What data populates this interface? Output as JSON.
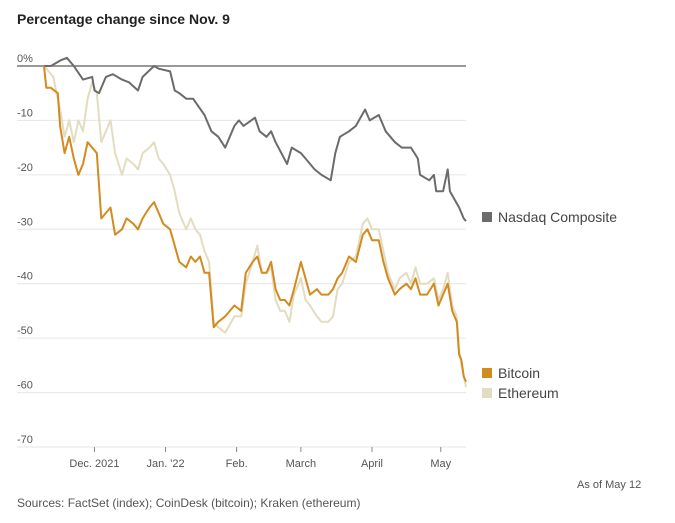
{
  "title": "Percentage change since Nov. 9",
  "as_of": "As of May 12",
  "source": "Sources: FactSet (index); CoinDesk (bitcoin); Kraken (ethereum)",
  "colors": {
    "nasdaq": "#6b6b6b",
    "bitcoin": "#d38a1e",
    "ethereum": "#e2dcc0",
    "grid": "#e6e6e6",
    "zero": "#777777",
    "axis": "#888888"
  },
  "chart_data": {
    "type": "line",
    "title": "Percentage change since Nov. 9",
    "ylim": [
      -70,
      0
    ],
    "yticks": [
      0,
      -10,
      -20,
      -30,
      -40,
      -50,
      -60,
      -70
    ],
    "ytick_labels": [
      "0%",
      "-10",
      "-20",
      "-30",
      "-40",
      "-50",
      "-60",
      "-70"
    ],
    "xlim": [
      "2021-11-09",
      "2022-05-12"
    ],
    "x_ticks": [
      {
        "date": "2021-12-01",
        "label": "Dec. 2021"
      },
      {
        "date": "2022-01-01",
        "label": "Jan. '22"
      },
      {
        "date": "2022-02-01",
        "label": "Feb."
      },
      {
        "date": "2022-03-01",
        "label": "March"
      },
      {
        "date": "2022-04-01",
        "label": "April"
      },
      {
        "date": "2022-05-01",
        "label": "May"
      }
    ],
    "grid": true,
    "legend": "right",
    "series": [
      {
        "name": "Nasdaq Composite",
        "points": [
          [
            "2021-11-09",
            0
          ],
          [
            "2021-11-12",
            0
          ],
          [
            "2021-11-16",
            1
          ],
          [
            "2021-11-19",
            1.5
          ],
          [
            "2021-11-22",
            0
          ],
          [
            "2021-11-26",
            -2.5
          ],
          [
            "2021-11-30",
            -2
          ],
          [
            "2021-12-01",
            -4.5
          ],
          [
            "2021-12-03",
            -5
          ],
          [
            "2021-12-06",
            -2
          ],
          [
            "2021-12-09",
            -1.5
          ],
          [
            "2021-12-13",
            -2.5
          ],
          [
            "2021-12-16",
            -3
          ],
          [
            "2021-12-20",
            -4.5
          ],
          [
            "2021-12-22",
            -2
          ],
          [
            "2021-12-27",
            0
          ],
          [
            "2021-12-29",
            -0.5
          ],
          [
            "2022-01-03",
            -1
          ],
          [
            "2022-01-05",
            -4.5
          ],
          [
            "2022-01-07",
            -5
          ],
          [
            "2022-01-10",
            -6
          ],
          [
            "2022-01-13",
            -6
          ],
          [
            "2022-01-18",
            -9
          ],
          [
            "2022-01-21",
            -12
          ],
          [
            "2022-01-24",
            -13
          ],
          [
            "2022-01-27",
            -15
          ],
          [
            "2022-01-31",
            -11
          ],
          [
            "2022-02-02",
            -10
          ],
          [
            "2022-02-04",
            -11
          ],
          [
            "2022-02-09",
            -9.5
          ],
          [
            "2022-02-11",
            -12
          ],
          [
            "2022-02-14",
            -13
          ],
          [
            "2022-02-16",
            -12
          ],
          [
            "2022-02-18",
            -14
          ],
          [
            "2022-02-23",
            -18
          ],
          [
            "2022-02-25",
            -15
          ],
          [
            "2022-03-01",
            -16
          ],
          [
            "2022-03-03",
            -17
          ],
          [
            "2022-03-07",
            -19
          ],
          [
            "2022-03-10",
            -20
          ],
          [
            "2022-03-14",
            -21
          ],
          [
            "2022-03-16",
            -16
          ],
          [
            "2022-03-18",
            -13
          ],
          [
            "2022-03-22",
            -12
          ],
          [
            "2022-03-25",
            -11
          ],
          [
            "2022-03-29",
            -8
          ],
          [
            "2022-03-31",
            -10
          ],
          [
            "2022-04-04",
            -9
          ],
          [
            "2022-04-07",
            -12
          ],
          [
            "2022-04-11",
            -14
          ],
          [
            "2022-04-14",
            -15
          ],
          [
            "2022-04-18",
            -15
          ],
          [
            "2022-04-21",
            -17
          ],
          [
            "2022-04-22",
            -20
          ],
          [
            "2022-04-26",
            -21
          ],
          [
            "2022-04-28",
            -20
          ],
          [
            "2022-04-29",
            -23
          ],
          [
            "2022-05-02",
            -23
          ],
          [
            "2022-05-04",
            -19
          ],
          [
            "2022-05-05",
            -23
          ],
          [
            "2022-05-09",
            -26
          ],
          [
            "2022-05-11",
            -28
          ],
          [
            "2022-05-12",
            -28.5
          ]
        ]
      },
      {
        "name": "Bitcoin",
        "points": [
          [
            "2021-11-09",
            0
          ],
          [
            "2021-11-10",
            -4
          ],
          [
            "2021-11-12",
            -4
          ],
          [
            "2021-11-15",
            -5
          ],
          [
            "2021-11-16",
            -11
          ],
          [
            "2021-11-18",
            -16
          ],
          [
            "2021-11-20",
            -13
          ],
          [
            "2021-11-22",
            -17
          ],
          [
            "2021-11-24",
            -20
          ],
          [
            "2021-11-26",
            -18
          ],
          [
            "2021-11-28",
            -14
          ],
          [
            "2021-11-30",
            -15
          ],
          [
            "2021-12-02",
            -16
          ],
          [
            "2021-12-04",
            -28
          ],
          [
            "2021-12-06",
            -27
          ],
          [
            "2021-12-08",
            -26
          ],
          [
            "2021-12-10",
            -31
          ],
          [
            "2021-12-13",
            -30
          ],
          [
            "2021-12-15",
            -28
          ],
          [
            "2021-12-18",
            -29
          ],
          [
            "2021-12-20",
            -30
          ],
          [
            "2021-12-22",
            -28
          ],
          [
            "2021-12-25",
            -26
          ],
          [
            "2021-12-27",
            -25
          ],
          [
            "2021-12-29",
            -27
          ],
          [
            "2021-12-31",
            -29
          ],
          [
            "2022-01-03",
            -30
          ],
          [
            "2022-01-05",
            -33
          ],
          [
            "2022-01-07",
            -36
          ],
          [
            "2022-01-10",
            -37
          ],
          [
            "2022-01-12",
            -35
          ],
          [
            "2022-01-14",
            -36
          ],
          [
            "2022-01-16",
            -35
          ],
          [
            "2022-01-18",
            -38
          ],
          [
            "2022-01-20",
            -38
          ],
          [
            "2022-01-22",
            -48
          ],
          [
            "2022-01-24",
            -47
          ],
          [
            "2022-01-27",
            -46
          ],
          [
            "2022-01-31",
            -44
          ],
          [
            "2022-02-03",
            -45
          ],
          [
            "2022-02-05",
            -38
          ],
          [
            "2022-02-08",
            -36
          ],
          [
            "2022-02-10",
            -35
          ],
          [
            "2022-02-12",
            -38
          ],
          [
            "2022-02-14",
            -38
          ],
          [
            "2022-02-16",
            -36
          ],
          [
            "2022-02-18",
            -41
          ],
          [
            "2022-02-20",
            -43
          ],
          [
            "2022-02-22",
            -43
          ],
          [
            "2022-02-24",
            -44
          ],
          [
            "2022-02-26",
            -41
          ],
          [
            "2022-03-01",
            -36
          ],
          [
            "2022-03-03",
            -39
          ],
          [
            "2022-03-05",
            -42
          ],
          [
            "2022-03-08",
            -41
          ],
          [
            "2022-03-10",
            -42
          ],
          [
            "2022-03-13",
            -42
          ],
          [
            "2022-03-15",
            -41
          ],
          [
            "2022-03-17",
            -39
          ],
          [
            "2022-03-19",
            -38
          ],
          [
            "2022-03-22",
            -35
          ],
          [
            "2022-03-25",
            -36
          ],
          [
            "2022-03-28",
            -31
          ],
          [
            "2022-03-30",
            -30
          ],
          [
            "2022-04-01",
            -32
          ],
          [
            "2022-04-04",
            -32
          ],
          [
            "2022-04-06",
            -36
          ],
          [
            "2022-04-08",
            -39
          ],
          [
            "2022-04-11",
            -42
          ],
          [
            "2022-04-13",
            -41
          ],
          [
            "2022-04-16",
            -40
          ],
          [
            "2022-04-18",
            -41
          ],
          [
            "2022-04-20",
            -39
          ],
          [
            "2022-04-22",
            -42
          ],
          [
            "2022-04-25",
            -42
          ],
          [
            "2022-04-28",
            -40
          ],
          [
            "2022-04-30",
            -44
          ],
          [
            "2022-05-02",
            -42
          ],
          [
            "2022-05-04",
            -40
          ],
          [
            "2022-05-06",
            -45
          ],
          [
            "2022-05-08",
            -47
          ],
          [
            "2022-05-09",
            -53
          ],
          [
            "2022-05-10",
            -54
          ],
          [
            "2022-05-11",
            -57
          ],
          [
            "2022-05-12",
            -58
          ]
        ]
      },
      {
        "name": "Ethereum",
        "points": [
          [
            "2021-11-09",
            0
          ],
          [
            "2021-11-11",
            -1
          ],
          [
            "2021-11-13",
            -2
          ],
          [
            "2021-11-16",
            -8
          ],
          [
            "2021-11-18",
            -13
          ],
          [
            "2021-11-20",
            -10
          ],
          [
            "2021-11-22",
            -14
          ],
          [
            "2021-11-24",
            -10
          ],
          [
            "2021-11-26",
            -12
          ],
          [
            "2021-11-28",
            -6
          ],
          [
            "2021-11-30",
            -3
          ],
          [
            "2021-12-02",
            -5
          ],
          [
            "2021-12-04",
            -14
          ],
          [
            "2021-12-06",
            -12
          ],
          [
            "2021-12-08",
            -10
          ],
          [
            "2021-12-10",
            -16
          ],
          [
            "2021-12-13",
            -20
          ],
          [
            "2021-12-15",
            -17
          ],
          [
            "2021-12-18",
            -18
          ],
          [
            "2021-12-20",
            -19
          ],
          [
            "2021-12-22",
            -16
          ],
          [
            "2021-12-25",
            -15
          ],
          [
            "2021-12-27",
            -14
          ],
          [
            "2021-12-29",
            -17
          ],
          [
            "2021-12-31",
            -18
          ],
          [
            "2022-01-03",
            -20
          ],
          [
            "2022-01-05",
            -23
          ],
          [
            "2022-01-07",
            -27
          ],
          [
            "2022-01-10",
            -30
          ],
          [
            "2022-01-12",
            -28
          ],
          [
            "2022-01-14",
            -30
          ],
          [
            "2022-01-16",
            -31
          ],
          [
            "2022-01-18",
            -34
          ],
          [
            "2022-01-20",
            -36
          ],
          [
            "2022-01-22",
            -47
          ],
          [
            "2022-01-24",
            -48
          ],
          [
            "2022-01-27",
            -49
          ],
          [
            "2022-01-31",
            -46
          ],
          [
            "2022-02-03",
            -46
          ],
          [
            "2022-02-05",
            -40
          ],
          [
            "2022-02-08",
            -36
          ],
          [
            "2022-02-10",
            -33
          ],
          [
            "2022-02-12",
            -38
          ],
          [
            "2022-02-14",
            -38
          ],
          [
            "2022-02-16",
            -37
          ],
          [
            "2022-02-18",
            -43
          ],
          [
            "2022-02-20",
            -45
          ],
          [
            "2022-02-22",
            -45
          ],
          [
            "2022-02-24",
            -47
          ],
          [
            "2022-02-26",
            -42
          ],
          [
            "2022-03-01",
            -39
          ],
          [
            "2022-03-03",
            -43
          ],
          [
            "2022-03-05",
            -44
          ],
          [
            "2022-03-08",
            -46
          ],
          [
            "2022-03-10",
            -47
          ],
          [
            "2022-03-13",
            -47
          ],
          [
            "2022-03-15",
            -46
          ],
          [
            "2022-03-17",
            -41
          ],
          [
            "2022-03-19",
            -40
          ],
          [
            "2022-03-22",
            -36
          ],
          [
            "2022-03-25",
            -35
          ],
          [
            "2022-03-28",
            -29
          ],
          [
            "2022-03-30",
            -28
          ],
          [
            "2022-04-01",
            -30
          ],
          [
            "2022-04-04",
            -30
          ],
          [
            "2022-04-06",
            -34
          ],
          [
            "2022-04-08",
            -38
          ],
          [
            "2022-04-11",
            -41
          ],
          [
            "2022-04-13",
            -39
          ],
          [
            "2022-04-16",
            -38
          ],
          [
            "2022-04-18",
            -40
          ],
          [
            "2022-04-20",
            -37
          ],
          [
            "2022-04-22",
            -40
          ],
          [
            "2022-04-25",
            -40
          ],
          [
            "2022-04-28",
            -39
          ],
          [
            "2022-04-30",
            -43
          ],
          [
            "2022-05-02",
            -41
          ],
          [
            "2022-05-04",
            -38
          ],
          [
            "2022-05-06",
            -44
          ],
          [
            "2022-05-08",
            -46
          ],
          [
            "2022-05-09",
            -52
          ],
          [
            "2022-05-10",
            -55
          ],
          [
            "2022-05-11",
            -57
          ],
          [
            "2022-05-12",
            -59
          ]
        ]
      }
    ]
  }
}
